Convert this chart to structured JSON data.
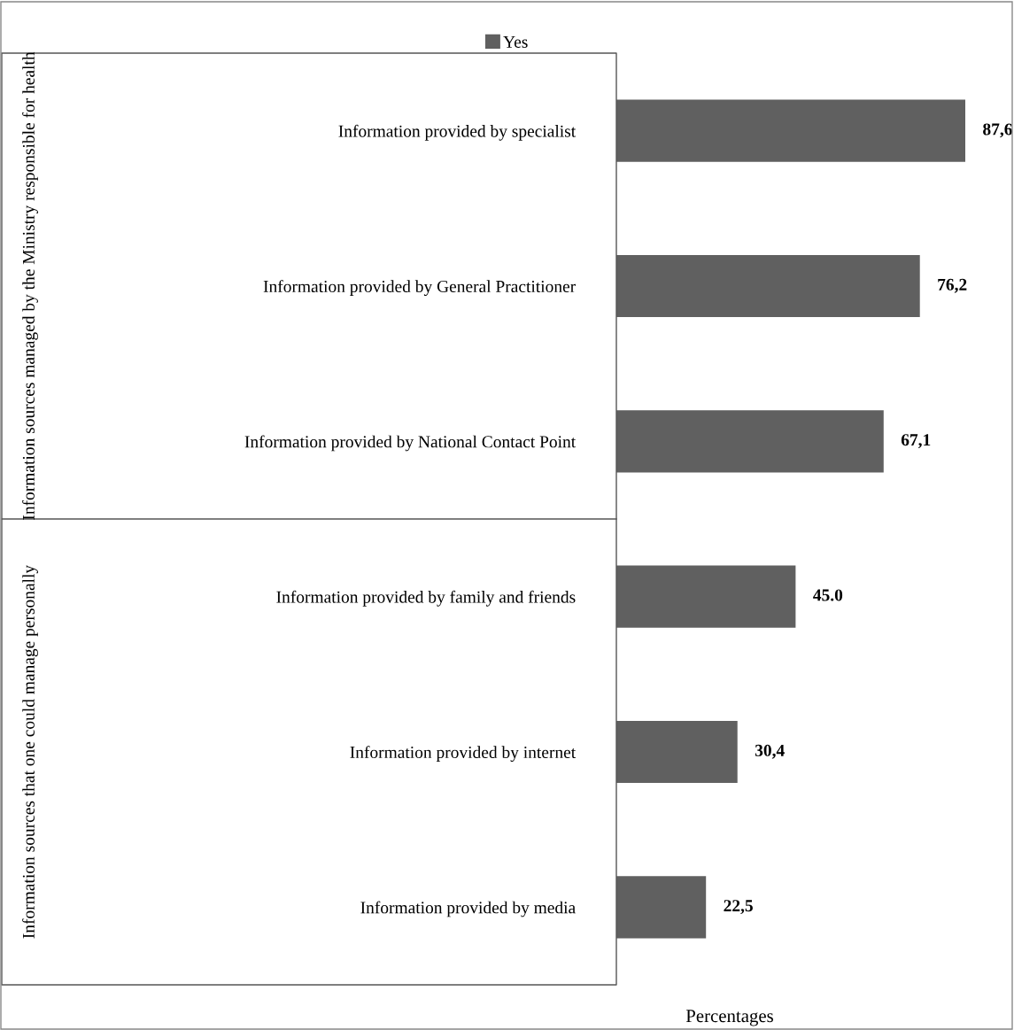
{
  "chart_data": {
    "type": "bar",
    "orientation": "horizontal",
    "xlabel": "Percentages",
    "legend": "top",
    "categories": [
      "Information provided by specialist",
      "Information provided by General Practitioner",
      "Information provided by National Contact Point",
      "Information provided by family and friends",
      "Information provided by internet",
      "Information provided by media"
    ],
    "series": [
      {
        "name": "Yes",
        "color": "#606060",
        "values": [
          87.6,
          76.2,
          67.1,
          45.0,
          30.4,
          22.5
        ],
        "value_labels": [
          "87,6",
          "76,2",
          "67,1",
          "45.0",
          "30,4",
          "22,5"
        ]
      }
    ],
    "annotations": [
      "Information sources managed by the Ministry responsible for health",
      "Information sources that one could manage personally"
    ]
  }
}
